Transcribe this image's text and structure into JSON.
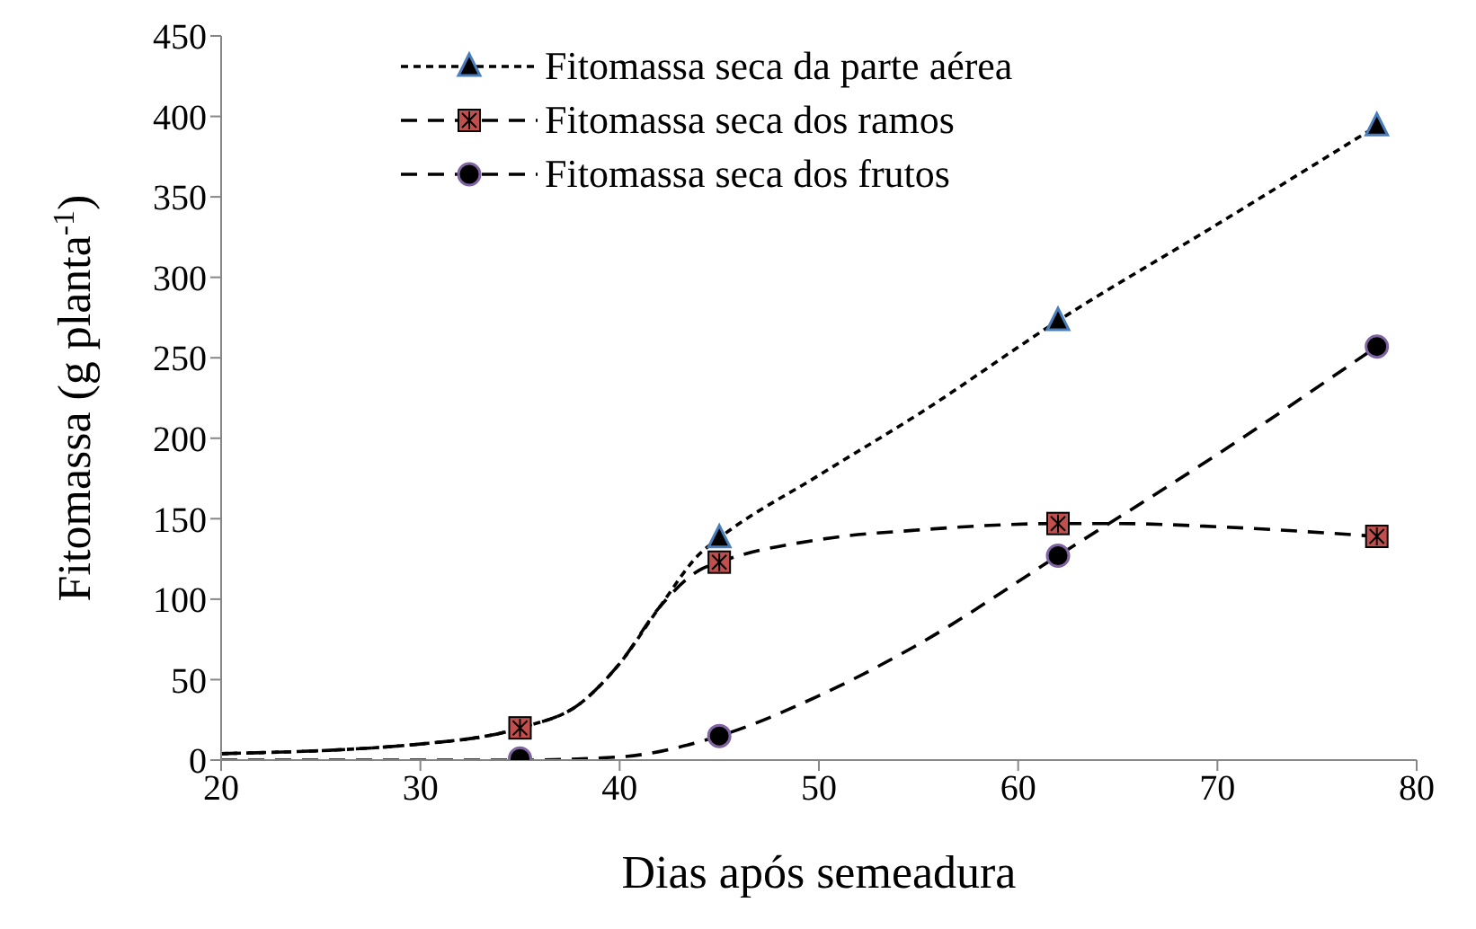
{
  "chart_data": {
    "type": "scatter",
    "xlabel": "Dias após semeadura",
    "ylabel": "Fitomassa (g planta$^{-1}$)",
    "xlim": [
      20,
      80
    ],
    "xticks": [
      20,
      30,
      40,
      50,
      60,
      70,
      80
    ],
    "ylim": [
      0,
      450
    ],
    "yticks": [
      0,
      50,
      100,
      150,
      200,
      250,
      300,
      350,
      400,
      450
    ],
    "grid": false,
    "legend": "top",
    "series": [
      {
        "name": "Fitomassa seca da parte aérea",
        "marker": "triangle",
        "color": "#000000",
        "x": [
          45,
          62,
          78
        ],
        "values": [
          138,
          273,
          394
        ]
      },
      {
        "name": "Fitomassa seca dos ramos",
        "marker": "square",
        "color": "#c0504d",
        "x": [
          35,
          45,
          62,
          78
        ],
        "values": [
          20,
          123,
          147,
          139
        ]
      },
      {
        "name": "Fitomassa seca dos frutos",
        "marker": "circle",
        "color": "#000000",
        "x": [
          35,
          45,
          62,
          78
        ],
        "values": [
          1,
          15,
          127,
          257
        ]
      },
      {
        "type": "line",
        "color": "#000000",
        "line_style": "dotted",
        "marker": "none",
        "x": [
          20,
          30,
          35,
          38,
          40,
          42,
          44,
          45,
          50,
          55,
          62,
          70,
          78
        ],
        "values": [
          4,
          10,
          20,
          35,
          60,
          95,
          128,
          138,
          177,
          215,
          273,
          333,
          394
        ]
      },
      {
        "type": "line",
        "color": "#000000",
        "line_style": "dashed",
        "marker": "none",
        "x": [
          20,
          30,
          35,
          38,
          40,
          42,
          44,
          45,
          50,
          55,
          62,
          65,
          70,
          78
        ],
        "values": [
          4,
          10,
          20,
          35,
          60,
          95,
          118,
          123,
          137,
          143,
          147,
          147,
          145,
          139
        ]
      },
      {
        "type": "line",
        "color": "#000000",
        "line_style": "dashed",
        "marker": "none",
        "x": [
          20,
          30,
          35,
          40,
          45,
          50,
          55,
          62,
          70,
          78
        ],
        "values": [
          0,
          0,
          0,
          2,
          15,
          40,
          72,
          127,
          190,
          257
        ]
      }
    ]
  }
}
